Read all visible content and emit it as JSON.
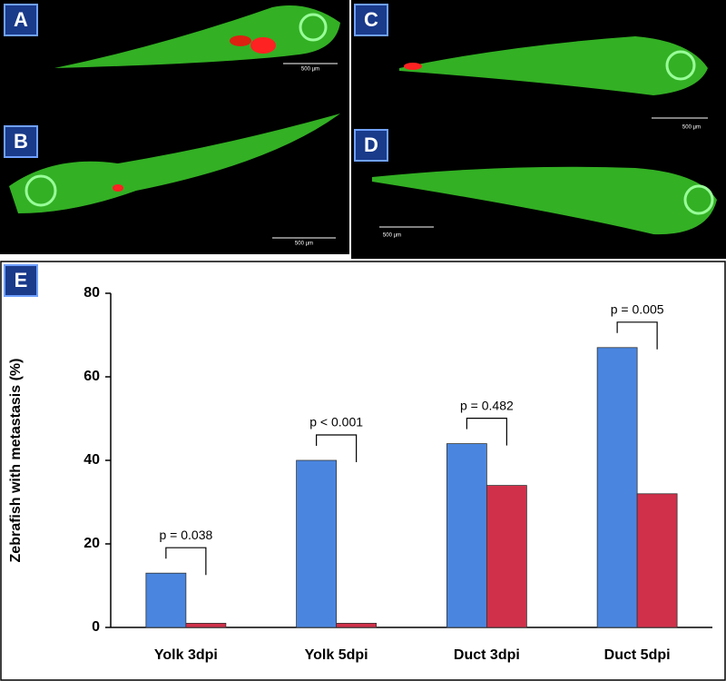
{
  "panels": [
    {
      "label": "A",
      "scale_bar": "500 µm"
    },
    {
      "label": "B",
      "scale_bar": "500 µm"
    },
    {
      "label": "C",
      "scale_bar": "500 µm"
    },
    {
      "label": "D",
      "scale_bar": "500 µm"
    }
  ],
  "chart_panel_label": "E",
  "chart_data": {
    "type": "bar",
    "y_label": "Zebrafish with metastasis (%)",
    "categories": [
      "Yolk 3dpi",
      "Yolk 5dpi",
      "Duct 3dpi",
      "Duct 5dpi"
    ],
    "series": [
      {
        "color": "#4a86e0",
        "values": [
          13,
          40,
          44,
          67
        ]
      },
      {
        "color": "#d0304a",
        "values": [
          1,
          1,
          34,
          32
        ]
      }
    ],
    "annotations": [
      "p = 0.038",
      "p < 0.001",
      "p = 0.482",
      "p = 0.005"
    ],
    "ylim": [
      0,
      80
    ],
    "yticks": [
      0,
      20,
      40,
      60,
      80
    ]
  }
}
